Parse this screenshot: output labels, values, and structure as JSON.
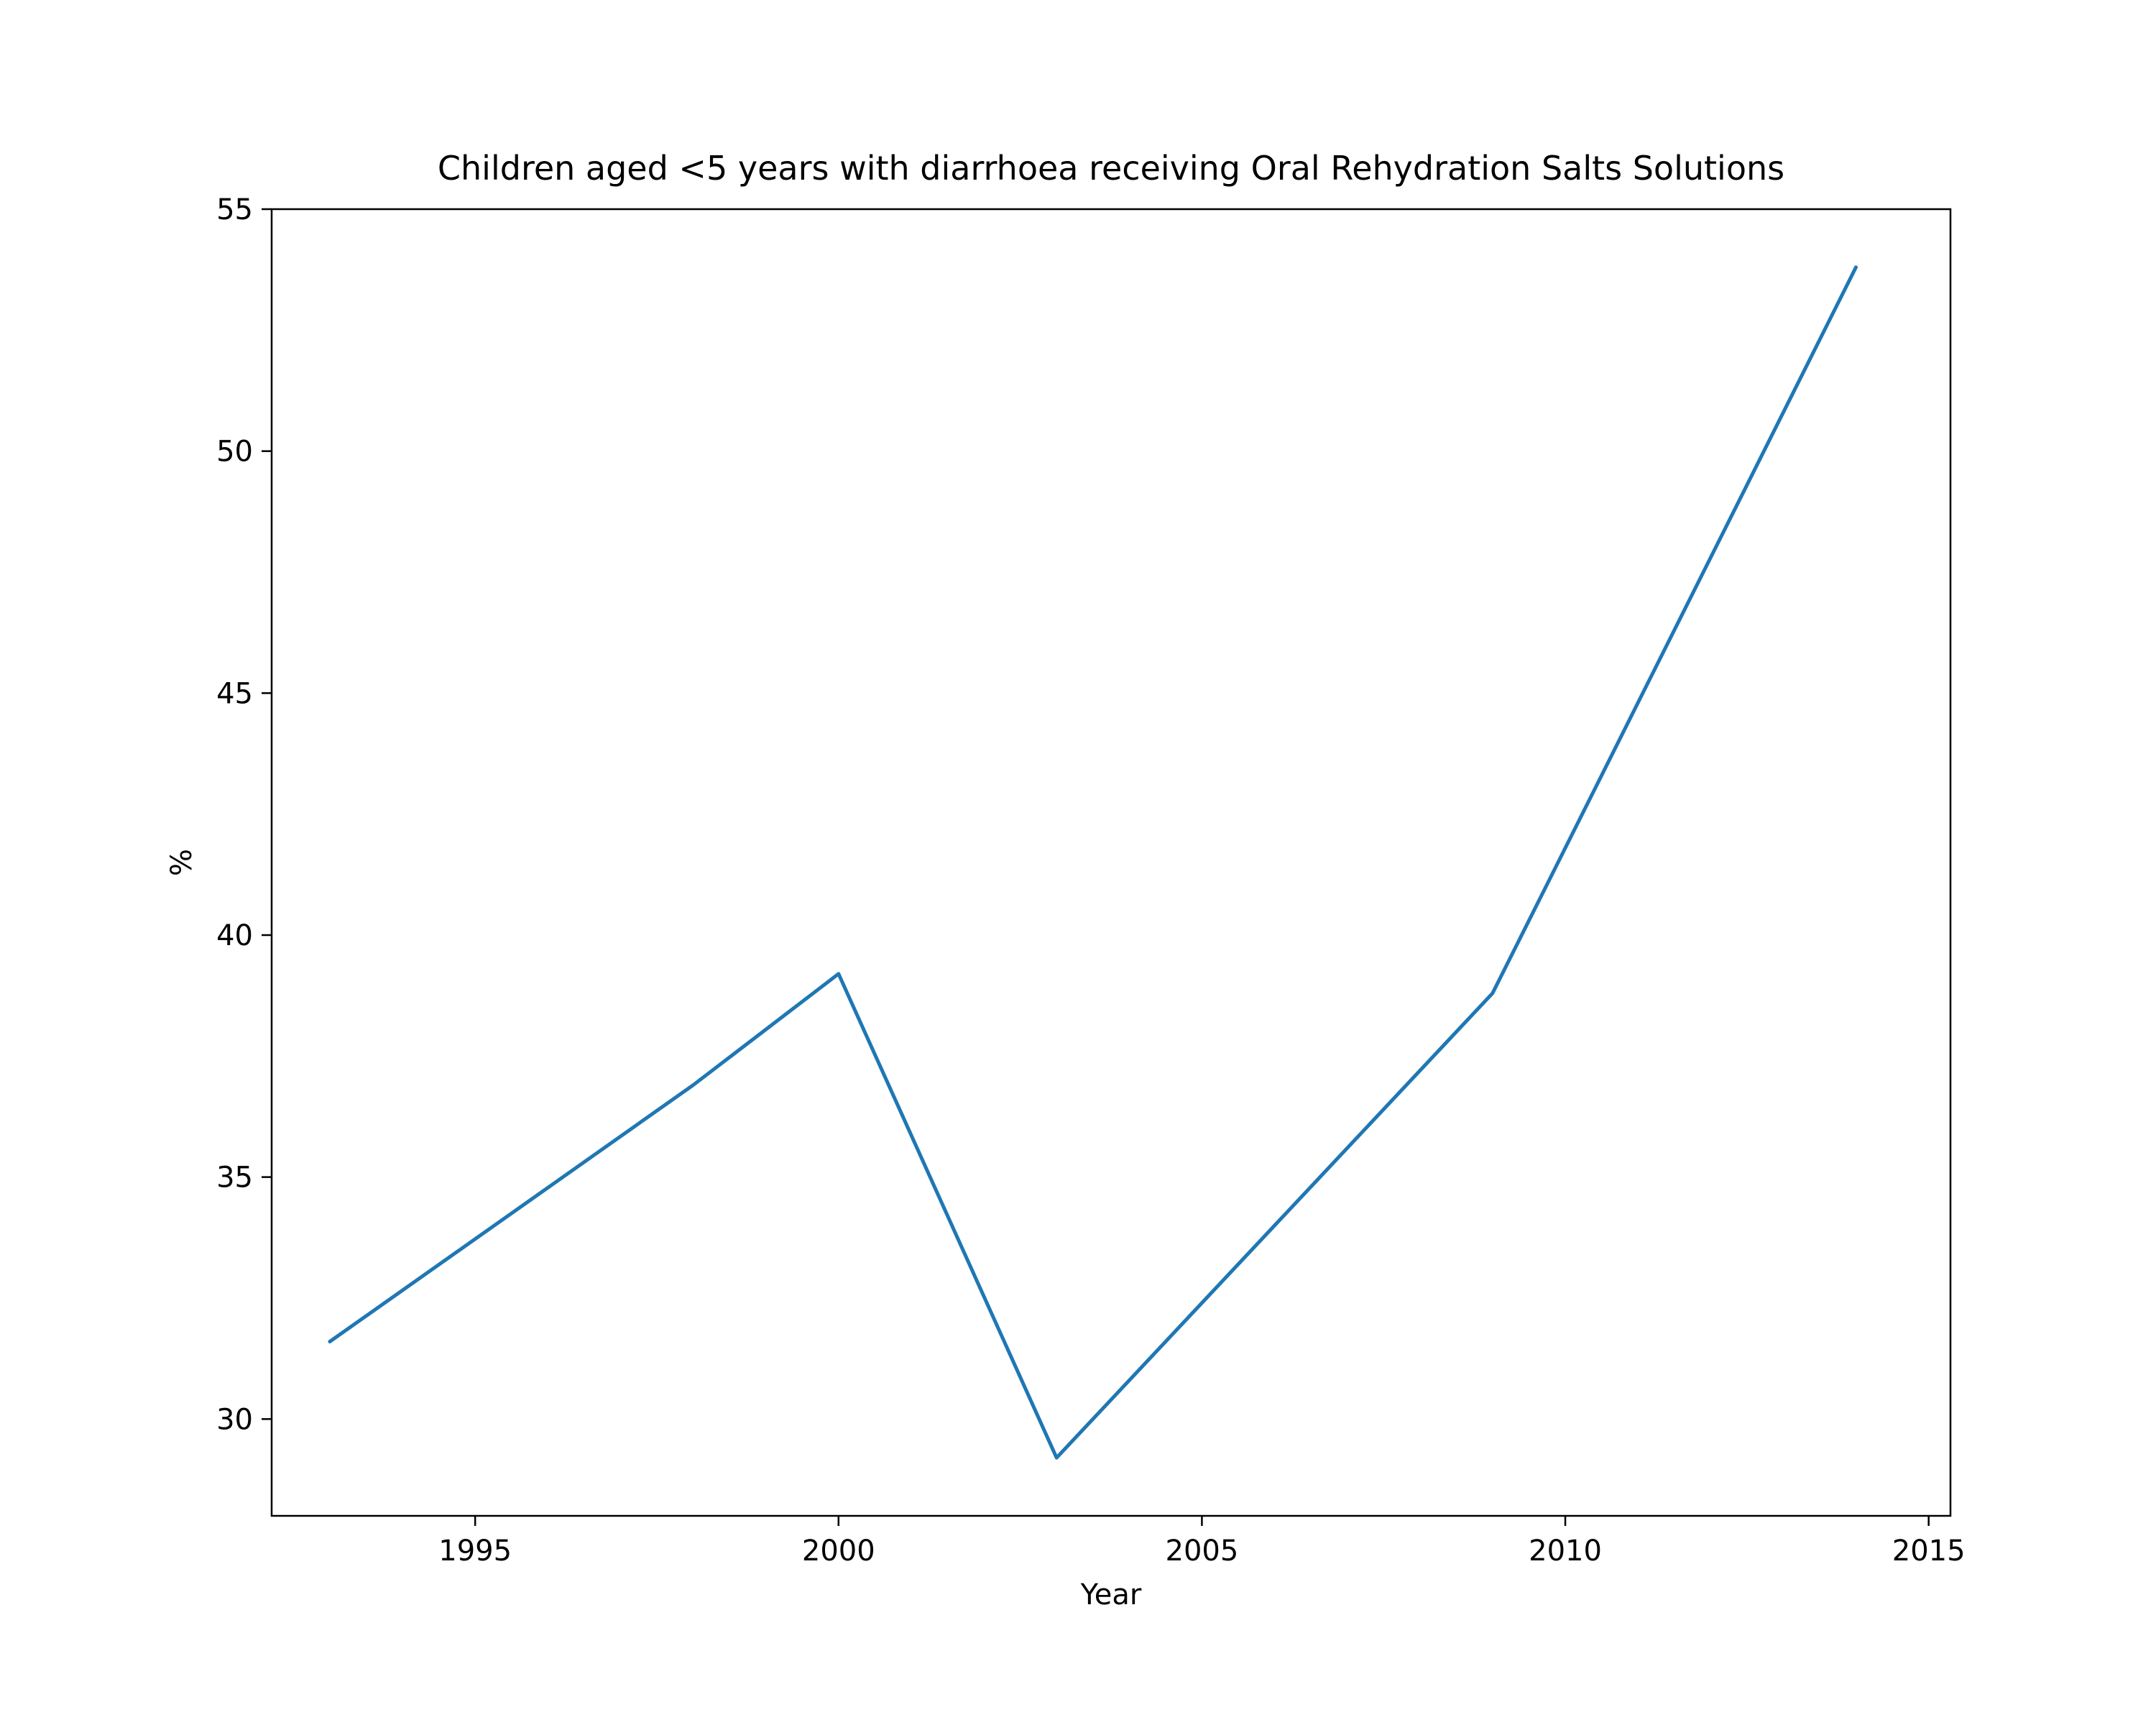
{
  "chart_data": {
    "type": "line",
    "title": "Children aged <5 years with diarrhoea receiving Oral Rehydration Salts Solutions",
    "xlabel": "Year",
    "ylabel": "%",
    "xlim": [
      1992.2,
      2015.3
    ],
    "ylim": [
      28,
      55
    ],
    "xticks": [
      1995,
      2000,
      2005,
      2010,
      2015
    ],
    "yticks": [
      30,
      35,
      40,
      45,
      50,
      55
    ],
    "grid": false,
    "legend": "none",
    "series": [
      {
        "color": "#1f77b4",
        "x": [
          1993,
          1998,
          2000,
          2003,
          2009,
          2014
        ],
        "y": [
          31.6,
          36.9,
          39.2,
          29.2,
          38.8,
          53.8
        ]
      }
    ]
  }
}
